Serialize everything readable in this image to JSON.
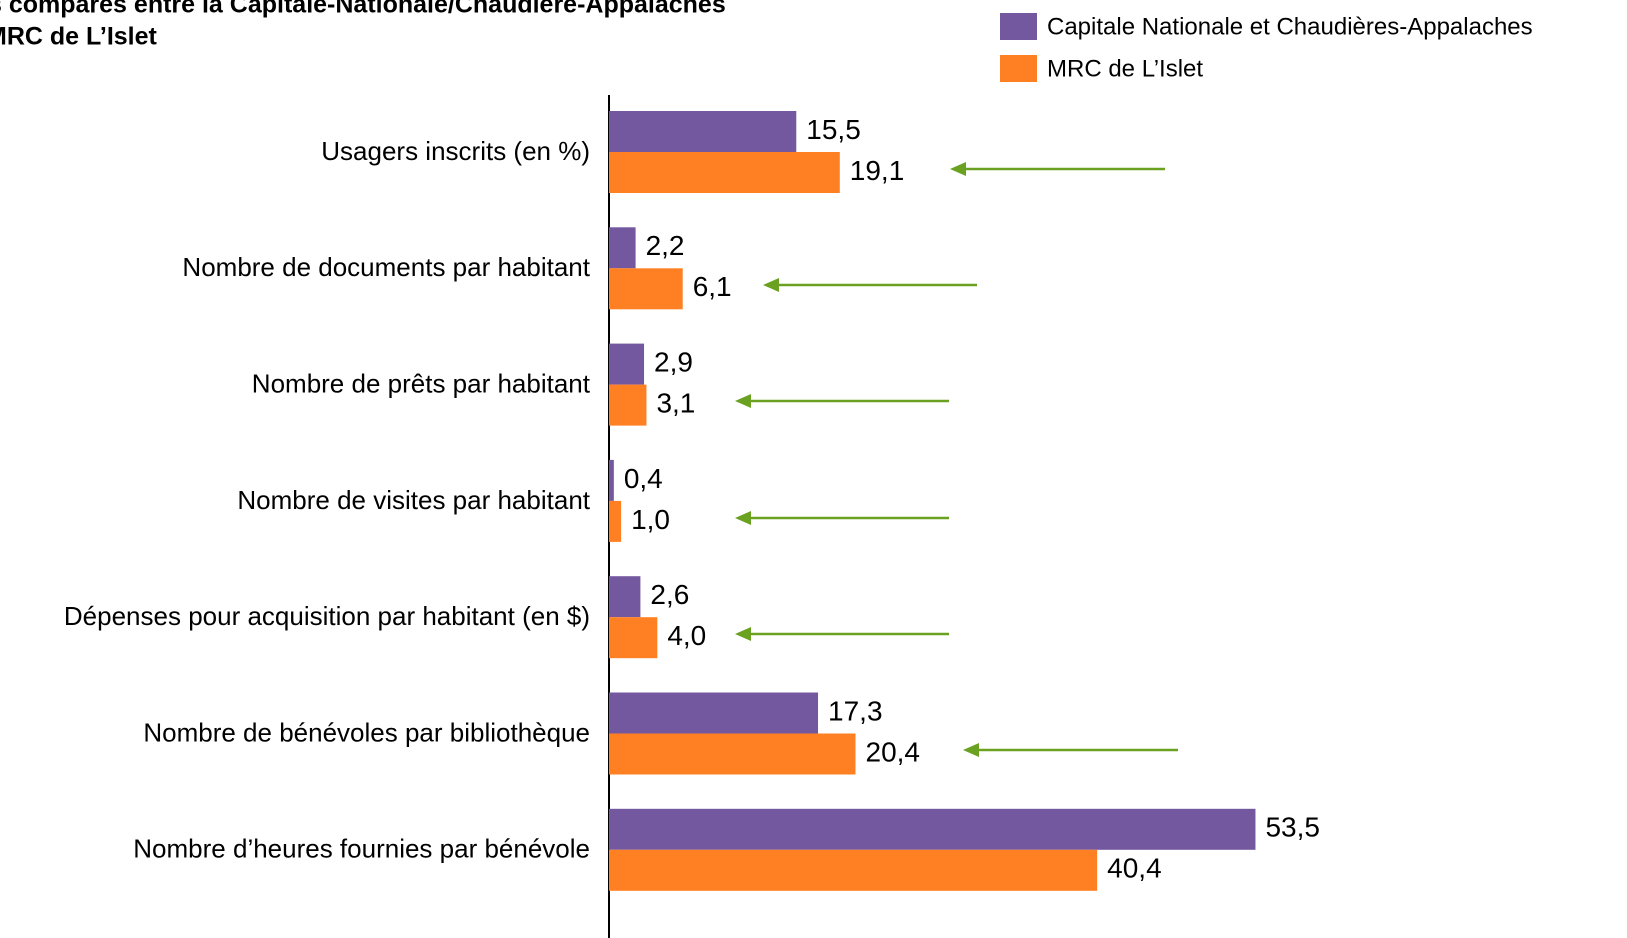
{
  "chart_data": {
    "type": "bar",
    "orientation": "horizontal",
    "title": [
      "s comparés entre la Capitale-Nationale/Chaudière-Appalaches",
      "MRC de L’Islet"
    ],
    "categories": [
      "Usagers inscrits (en %)",
      "Nombre de documents par habitant",
      "Nombre de prêts par habitant",
      "Nombre de visites par habitant",
      "Dépenses pour acquisition par habitant (en $)",
      "Nombre de bénévoles par bibliothèque",
      "Nombre d’heures fournies par bénévole"
    ],
    "series": [
      {
        "name": "Capitale Nationale et Chaudières-Appalaches",
        "color": "#7358a0",
        "values": [
          15.5,
          2.2,
          2.9,
          0.4,
          2.6,
          17.3,
          53.5
        ],
        "value_labels": [
          "15,5",
          "2,2",
          "2,9",
          "0,4",
          "2,6",
          "17,3",
          "53,5"
        ]
      },
      {
        "name": "MRC de L’Islet",
        "color": "#ff8022",
        "values": [
          19.1,
          6.1,
          3.1,
          1.0,
          4.0,
          20.4,
          40.4
        ],
        "value_labels": [
          "19,1",
          "6,1",
          "3,1",
          "1,0",
          "4,0",
          "20,4",
          "40,4"
        ]
      }
    ],
    "xlim": [
      0,
      60
    ],
    "legend": "top-right"
  }
}
